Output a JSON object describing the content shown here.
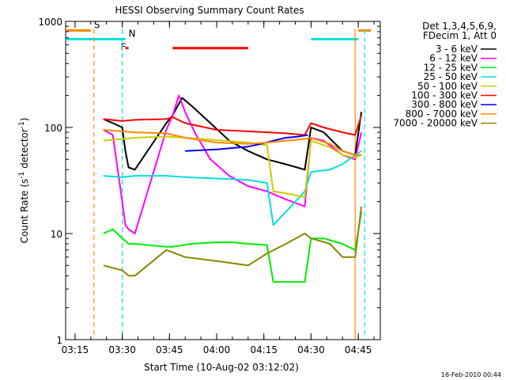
{
  "chart_data": {
    "type": "line",
    "title": "HESSI Observing Summary Count Rates",
    "xlabel": "Start Time (10-Aug-02 03:12:02)",
    "ylabel": "Count Rate (s⁻¹ detector⁻¹)",
    "ylabel_parts": {
      "main": "Count Rate (s",
      "sup1": "-1",
      "mid": " detector",
      "sup2": "-1",
      "end": ")"
    },
    "y_scale": "log",
    "ylim": [
      1,
      1000
    ],
    "xlim": [
      "03:12",
      "04:52"
    ],
    "x_ticks": [
      "03:15",
      "03:30",
      "03:45",
      "04:00",
      "04:15",
      "04:30",
      "04:45"
    ],
    "y_ticks": [
      "1",
      "10",
      "100",
      "1000"
    ],
    "grid": false,
    "legend_position": "right",
    "legend_header": [
      "Det 1,3,4,5,6,9,",
      "FDecim 1, Att 0"
    ],
    "footer": "16-Feb-2010 00:44",
    "annotations": [
      {
        "label": "S",
        "color": "#ff8800",
        "y": 820,
        "segments": [
          [
            "03:12",
            "03:20"
          ],
          [
            "04:45",
            "04:49"
          ]
        ]
      },
      {
        "label": "N",
        "color": "#00e0e0",
        "y": 680,
        "segments": [
          [
            "03:12",
            "03:31"
          ],
          [
            "04:30",
            "04:45"
          ]
        ]
      },
      {
        "label": "F",
        "color": "#ff0000",
        "y": 560,
        "segments": [
          [
            "03:31",
            "03:32"
          ],
          [
            "03:46",
            "04:10"
          ]
        ]
      }
    ],
    "vlines": [
      {
        "x": "03:21",
        "color": "#ff8800",
        "style": "dashed"
      },
      {
        "x": "03:30",
        "color": "#00e0e0",
        "style": "dashed"
      },
      {
        "x": "04:44",
        "color": "#ff8800",
        "style": "solid"
      },
      {
        "x": "04:47",
        "color": "#00e0e0",
        "style": "dashed"
      }
    ],
    "series": [
      {
        "name": "3 - 6 keV",
        "color": "#000000",
        "x": [
          "03:24",
          "03:27",
          "03:30",
          "03:31",
          "03:32",
          "03:34",
          "03:44",
          "03:46",
          "03:49",
          "03:52",
          "03:58",
          "04:04",
          "04:10",
          "04:16",
          "04:22",
          "04:28",
          "04:30",
          "04:34",
          "04:40",
          "04:44",
          "04:46"
        ],
        "y": [
          120,
          110,
          100,
          60,
          42,
          40,
          110,
          130,
          190,
          160,
          110,
          75,
          60,
          50,
          45,
          40,
          100,
          90,
          60,
          55,
          140
        ]
      },
      {
        "name": "6 - 12 keV",
        "color": "#ff00ff",
        "x": [
          "03:24",
          "03:27",
          "03:30",
          "03:31",
          "03:32",
          "03:34",
          "03:44",
          "03:46",
          "03:48",
          "03:50",
          "03:53",
          "03:58",
          "04:04",
          "04:10",
          "04:16",
          "04:22",
          "04:28",
          "04:30",
          "04:34",
          "04:40",
          "04:44",
          "04:46"
        ],
        "y": [
          95,
          85,
          20,
          12,
          11,
          10,
          95,
          130,
          200,
          140,
          90,
          50,
          35,
          28,
          25,
          21,
          18,
          80,
          75,
          55,
          50,
          90
        ]
      },
      {
        "name": "12 - 25 keV",
        "color": "#00ee00",
        "x": [
          "03:24",
          "03:27",
          "03:30",
          "03:32",
          "03:34",
          "03:44",
          "03:46",
          "03:52",
          "03:58",
          "04:04",
          "04:10",
          "04:16",
          "04:18",
          "04:22",
          "04:28",
          "04:30",
          "04:34",
          "04:40",
          "04:44",
          "04:46"
        ],
        "y": [
          10,
          11,
          9,
          8,
          8,
          7.5,
          7.5,
          8,
          8.2,
          8.3,
          8,
          7.8,
          3.5,
          3.5,
          3.5,
          9,
          9,
          8,
          7,
          16
        ]
      },
      {
        "name": "25 - 50 keV",
        "color": "#00e0e0",
        "x": [
          "03:24",
          "03:30",
          "03:34",
          "03:44",
          "03:50",
          "04:00",
          "04:10",
          "04:16",
          "04:18",
          "04:22",
          "04:28",
          "04:30",
          "04:36",
          "04:40",
          "04:44",
          "04:46"
        ],
        "y": [
          35,
          34,
          35,
          35,
          34,
          33,
          32,
          30,
          12,
          16,
          25,
          38,
          40,
          45,
          55,
          60
        ]
      },
      {
        "name": "50 - 100 keV",
        "color": "#cccc00",
        "x": [
          "03:24",
          "03:30",
          "03:34",
          "03:44",
          "03:50",
          "04:00",
          "04:10",
          "04:16",
          "04:18",
          "04:22",
          "04:28",
          "04:30",
          "04:36",
          "04:40",
          "04:44",
          "04:46"
        ],
        "y": [
          75,
          78,
          80,
          82,
          80,
          76,
          72,
          68,
          25,
          24,
          22,
          75,
          65,
          55,
          52,
          55
        ]
      },
      {
        "name": "100 - 300 keV",
        "color": "#ff0000",
        "x": [
          "03:24",
          "03:30",
          "03:34",
          "03:44",
          "03:46",
          "03:50",
          "04:00",
          "04:10",
          "04:16",
          "04:22",
          "04:28",
          "04:30",
          "04:34",
          "04:40",
          "04:44",
          "04:46"
        ],
        "y": [
          120,
          115,
          118,
          120,
          125,
          110,
          95,
          92,
          90,
          88,
          85,
          110,
          100,
          90,
          85,
          130
        ]
      },
      {
        "name": "300 - 800 keV",
        "color": "#0000ff",
        "x": [
          "03:50",
          "04:00",
          "04:05",
          "04:10",
          "04:14",
          "04:18",
          "04:22",
          "04:26",
          "04:29"
        ],
        "y": [
          60,
          62,
          64,
          66,
          70,
          75,
          80,
          82,
          85
        ]
      },
      {
        "name": "800 - 7000 keV",
        "color": "#ff8800",
        "x": [
          "03:24",
          "03:30",
          "03:34",
          "03:44",
          "03:50",
          "04:00",
          "04:10",
          "04:16",
          "04:22",
          "04:28",
          "04:30",
          "04:36",
          "04:40",
          "04:44",
          "04:46"
        ],
        "y": [
          95,
          92,
          90,
          88,
          80,
          72,
          70,
          72,
          75,
          78,
          80,
          70,
          60,
          55,
          55
        ]
      },
      {
        "name": "7000 - 20000 keV",
        "color": "#888800",
        "x": [
          "03:24",
          "03:30",
          "03:32",
          "03:34",
          "03:44",
          "03:50",
          "04:00",
          "04:10",
          "04:16",
          "04:22",
          "04:28",
          "04:30",
          "04:36",
          "04:40",
          "04:44",
          "04:46"
        ],
        "y": [
          5,
          4.5,
          4,
          4,
          7,
          6,
          5.5,
          5,
          6.5,
          8,
          10,
          9,
          8,
          6,
          6,
          18
        ]
      }
    ]
  }
}
